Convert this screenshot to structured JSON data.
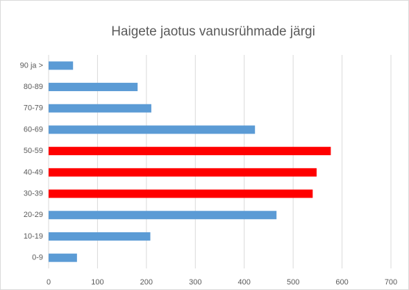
{
  "chart_data": {
    "type": "bar",
    "orientation": "horizontal",
    "title": "Haigete jaotus vanusrühmade järgi",
    "categories": [
      "0-9",
      "10-19",
      "20-29",
      "30-39",
      "40-49",
      "50-59",
      "60-69",
      "70-79",
      "80-89",
      "90 ja >"
    ],
    "values": [
      58,
      208,
      466,
      540,
      548,
      577,
      422,
      210,
      182,
      50
    ],
    "colors": [
      "#5b9bd5",
      "#5b9bd5",
      "#5b9bd5",
      "#ff0000",
      "#ff0000",
      "#ff0000",
      "#5b9bd5",
      "#5b9bd5",
      "#5b9bd5",
      "#5b9bd5"
    ],
    "xlim": [
      0,
      700
    ],
    "xticks": [
      0,
      100,
      200,
      300,
      400,
      500,
      600,
      700
    ],
    "grid": true
  }
}
